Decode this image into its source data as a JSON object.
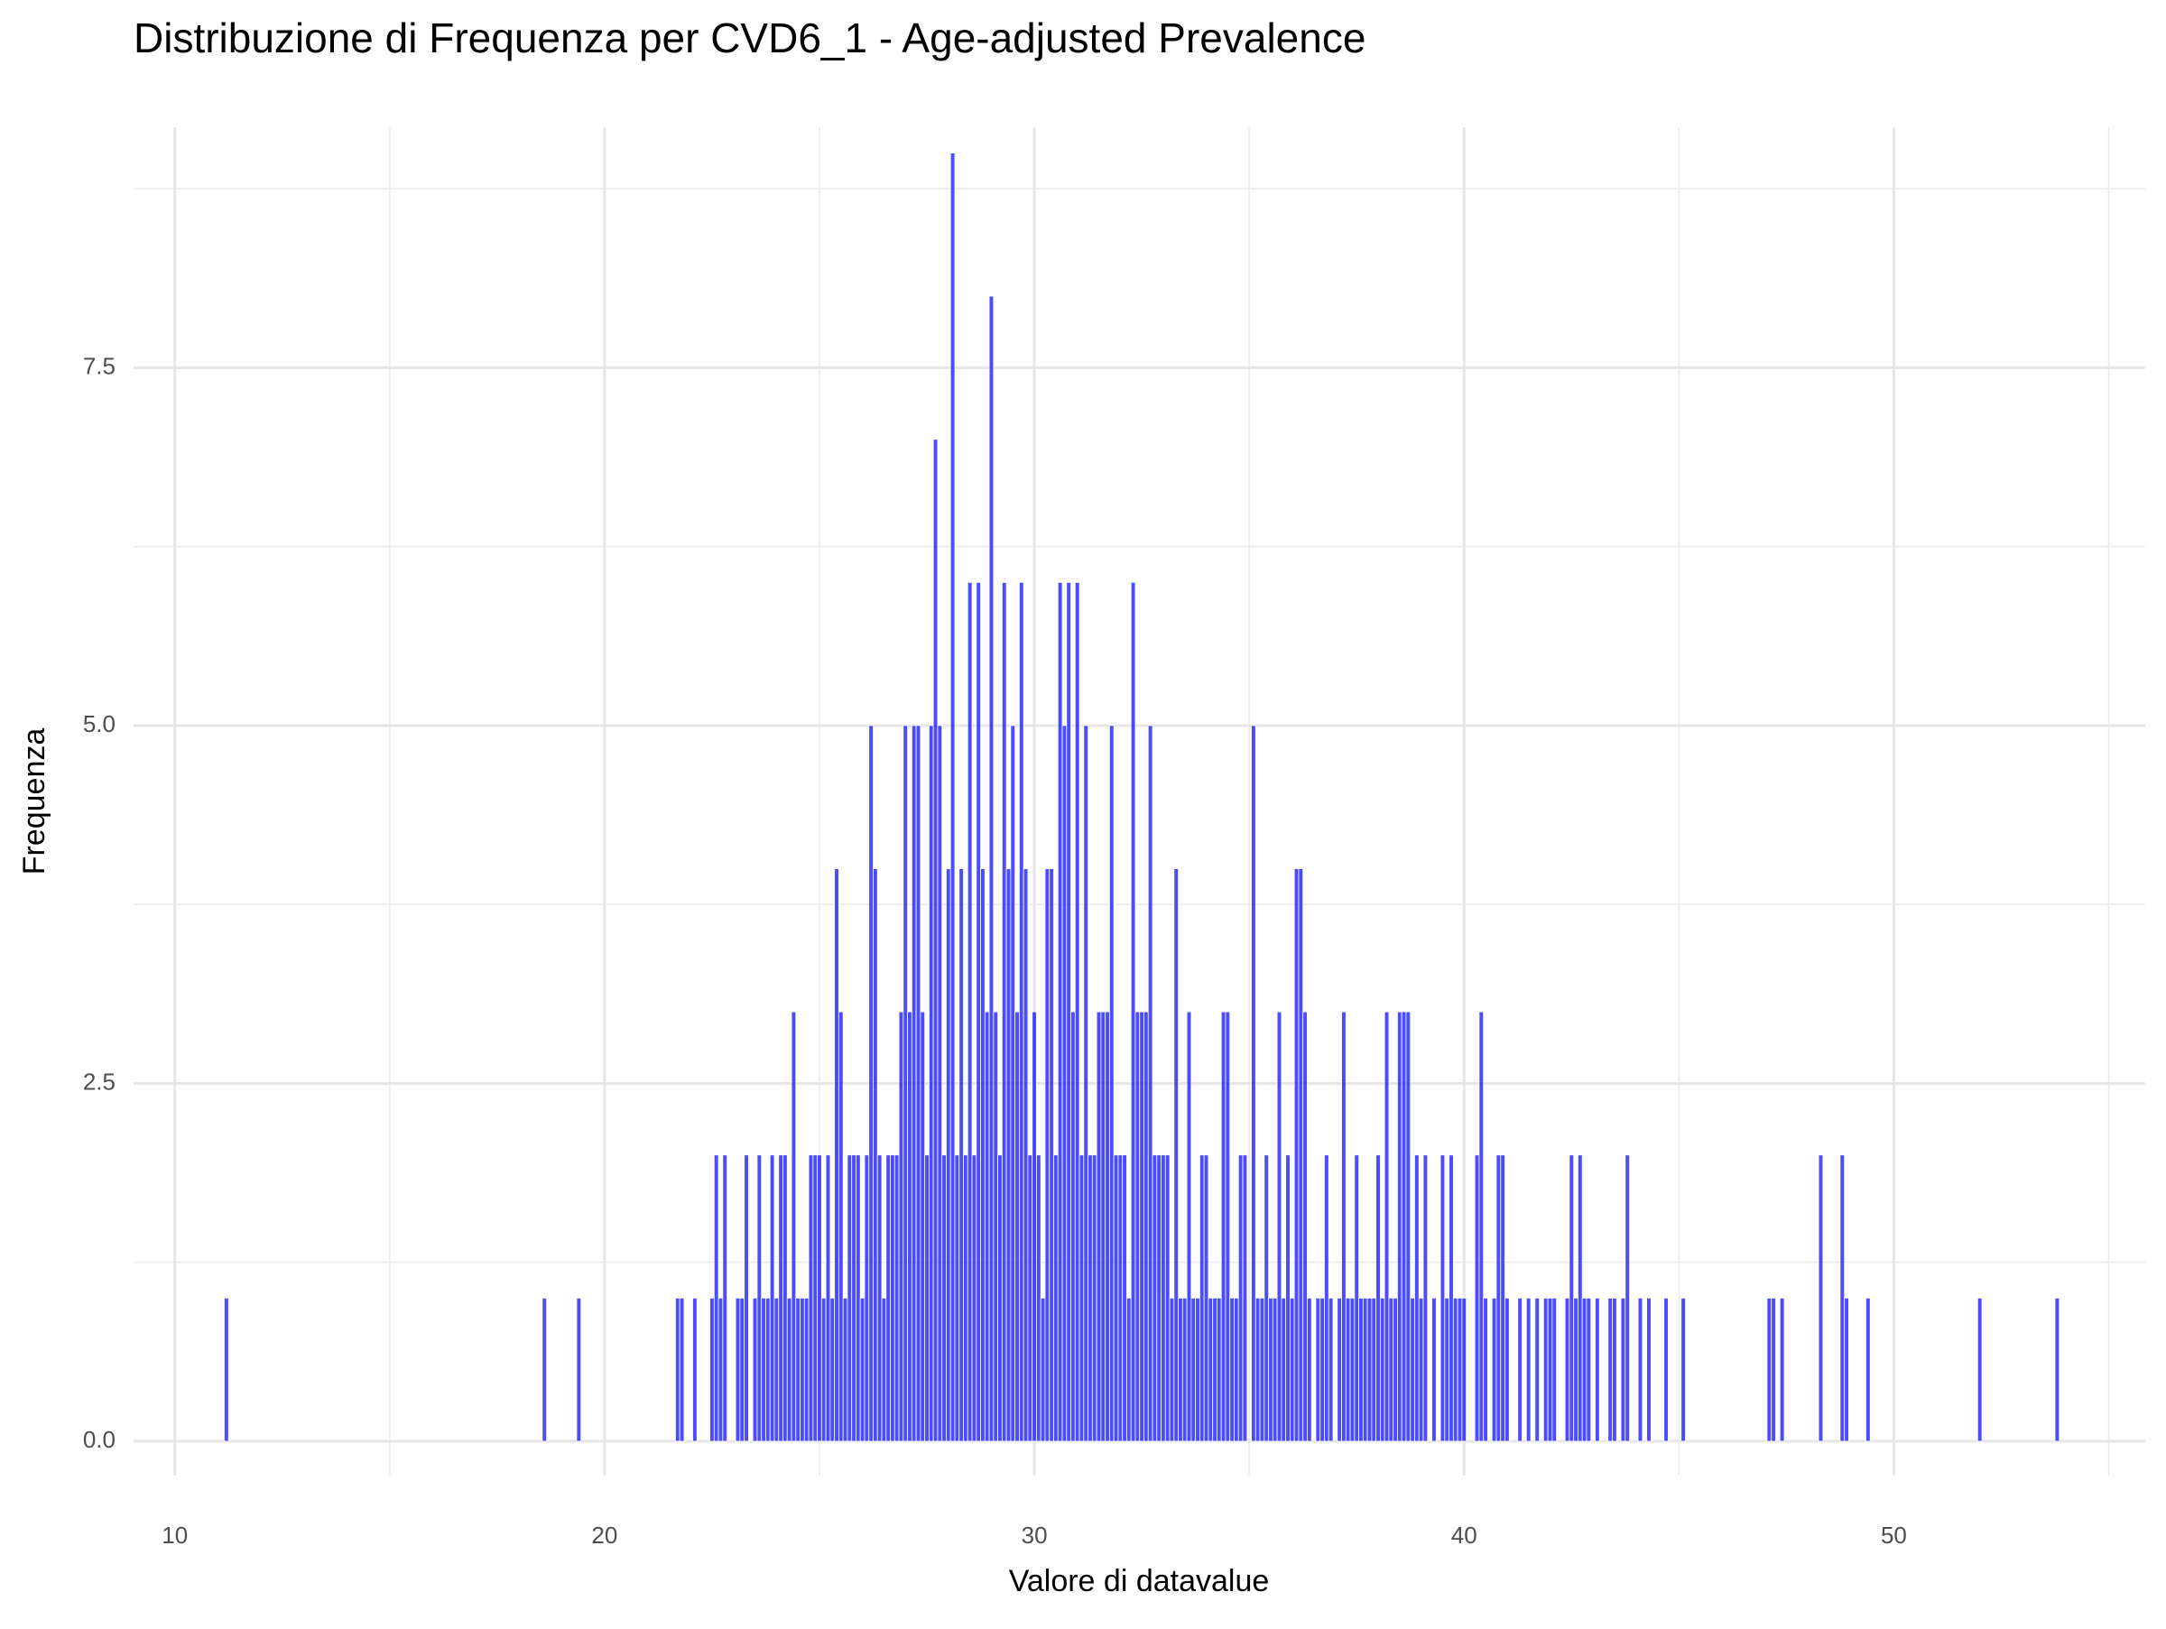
{
  "chart_data": {
    "type": "histogram",
    "title": "Distribuzione di Frequenza per CVD6_1 - Age-adjusted Prevalence",
    "xlabel": "Valore di datavalue",
    "ylabel": "Frequenza",
    "color": "#0000ff",
    "alpha": 0.7,
    "grid": true,
    "xlim": [
      9.04,
      55.85
    ],
    "ylim": [
      -0.24,
      9.18
    ],
    "xticks": [
      10,
      20,
      30,
      40,
      50
    ],
    "yticks": [
      {
        "value": 0,
        "label": "0.0"
      },
      2.5,
      {
        "value": 5,
        "label": "5.0"
      },
      7.5
    ],
    "bins": [
      11.15,
      11.25,
      18.55,
      18.65,
      19.35,
      19.45,
      21.65,
      21.75,
      21.85,
      21.95,
      22.05,
      22.15,
      22.25,
      22.35,
      22.45,
      22.55,
      22.65,
      22.75,
      22.85,
      22.95,
      23.05,
      23.15,
      23.25,
      23.35,
      23.45,
      23.55,
      23.65,
      23.75,
      23.85,
      23.95,
      24.05,
      24.15,
      24.25,
      24.35,
      24.45,
      24.55,
      24.65,
      24.75,
      24.85,
      24.95,
      25.05,
      25.15,
      25.25,
      25.35,
      25.45,
      25.55,
      25.65,
      25.75,
      25.85,
      25.95,
      26.05,
      26.15,
      26.25,
      26.35,
      26.45,
      26.55,
      26.65,
      26.75,
      26.85,
      26.95,
      27.05,
      27.15,
      27.25,
      27.35,
      27.45,
      27.55,
      27.65,
      27.75,
      27.85,
      27.95,
      28.05,
      28.15,
      28.25,
      28.35,
      28.45,
      28.55,
      28.65,
      28.75,
      28.85,
      28.95,
      29.05,
      29.15,
      29.25,
      29.35,
      29.45,
      29.55,
      29.65,
      29.75,
      29.85,
      29.95,
      30.05,
      30.15,
      30.25,
      30.35,
      30.45,
      30.55,
      30.65,
      30.75,
      30.85,
      30.95,
      31.05,
      31.15,
      31.25,
      31.35,
      31.45,
      31.55,
      31.65,
      31.75,
      31.85,
      31.95,
      32.05,
      32.15,
      32.25,
      32.35,
      32.45,
      32.55,
      32.65,
      32.75,
      32.85,
      32.95,
      33.05,
      33.15,
      33.25,
      33.35,
      33.45,
      33.55,
      33.65,
      33.75,
      33.85,
      33.95,
      34.05,
      34.15,
      34.25,
      34.35,
      34.45,
      34.55,
      34.65,
      34.75,
      34.85,
      34.95,
      35.05,
      35.15,
      35.25,
      35.35,
      35.45,
      35.55,
      35.65,
      35.75,
      35.85,
      35.95,
      36.05,
      36.15,
      36.25,
      36.35,
      36.45,
      36.55,
      36.65,
      36.75,
      36.85,
      36.95,
      37.05,
      37.15,
      37.25,
      37.35,
      37.45,
      37.55,
      37.65,
      37.75,
      37.85,
      37.95,
      38.05,
      38.15,
      38.25,
      38.35,
      38.45,
      38.55,
      38.65,
      38.75,
      38.85,
      38.95,
      39.05,
      39.15,
      39.25,
      39.35,
      39.45,
      39.55,
      39.65,
      39.75,
      39.85,
      39.95,
      40.05,
      40.15,
      40.25,
      40.35,
      40.45,
      40.55,
      40.65,
      40.75,
      40.85,
      40.95,
      41.05,
      41.15,
      41.25,
      41.35,
      41.45,
      41.55,
      41.65,
      41.75,
      41.85,
      41.95,
      42.05,
      42.15,
      42.25,
      42.35,
      42.45,
      42.55,
      42.65,
      42.75,
      42.85,
      42.95,
      43.05,
      43.15,
      43.25,
      43.35,
      43.45,
      43.55,
      43.65,
      43.75,
      43.85,
      43.95,
      44.05,
      44.15,
      44.25,
      44.35,
      44.45,
      44.55,
      44.65,
      44.75,
      44.85,
      44.95,
      45.05,
      45.15,
      45.25,
      45.35,
      45.45,
      45.55,
      45.65,
      45.75,
      45.85,
      45.95,
      46.05,
      46.15,
      46.25,
      46.35,
      46.45,
      46.55,
      46.65,
      46.75,
      46.85,
      46.95,
      47.05,
      47.15,
      47.25,
      47.35,
      47.45,
      47.55,
      47.65,
      47.75,
      47.85,
      47.95,
      48.05,
      48.15,
      48.25,
      48.35,
      48.45,
      48.55,
      48.65,
      48.75,
      48.85,
      48.95,
      49.05,
      49.15,
      49.25,
      49.35,
      49.45,
      51.95,
      52.05,
      53.75,
      53.85
    ],
    "counts": [
      1,
      0,
      1,
      0,
      1,
      0,
      1,
      1,
      0,
      0,
      1,
      0,
      0,
      0,
      1,
      2,
      1,
      2,
      0,
      0,
      1,
      1,
      2,
      0,
      1,
      2,
      1,
      1,
      2,
      1,
      2,
      2,
      1,
      3,
      1,
      1,
      1,
      2,
      2,
      2,
      1,
      2,
      1,
      4,
      3,
      1,
      2,
      2,
      2,
      1,
      2,
      5,
      4,
      2,
      1,
      2,
      2,
      2,
      3,
      5,
      3,
      5,
      5,
      3,
      2,
      5,
      7,
      5,
      2,
      4,
      9,
      2,
      4,
      2,
      6,
      2,
      6,
      4,
      3,
      8,
      3,
      2,
      6,
      4,
      5,
      3,
      6,
      4,
      2,
      3,
      2,
      1,
      4,
      4,
      2,
      6,
      5,
      6,
      3,
      6,
      2,
      5,
      2,
      2,
      3,
      3,
      3,
      5,
      2,
      2,
      2,
      1,
      6,
      3,
      3,
      3,
      5,
      2,
      2,
      2,
      2,
      1,
      4,
      1,
      1,
      3,
      1,
      1,
      2,
      2,
      1,
      1,
      1,
      3,
      3,
      1,
      1,
      2,
      2,
      0,
      5,
      1,
      1,
      2,
      1,
      1,
      3,
      1,
      2,
      1,
      4,
      4,
      3,
      1,
      0,
      1,
      1,
      2,
      1,
      0,
      1,
      3,
      1,
      1,
      2,
      1,
      1,
      1,
      1,
      2,
      1,
      3,
      1,
      1,
      3,
      3,
      3,
      1,
      2,
      1,
      2,
      0,
      1,
      0,
      2,
      1,
      2,
      1,
      1,
      1,
      0,
      0,
      2,
      3,
      1,
      0,
      1,
      2,
      2,
      1,
      0,
      0,
      1,
      0,
      1,
      0,
      1,
      0,
      1,
      1,
      1,
      0,
      0,
      1,
      2,
      1,
      2,
      1,
      1,
      0,
      1,
      0,
      0,
      1,
      1,
      0,
      1,
      2,
      0,
      0,
      1,
      0,
      1,
      0,
      0,
      0,
      1,
      0,
      0,
      0,
      1,
      0,
      0,
      0,
      0,
      0,
      0,
      0,
      0,
      0,
      0,
      0,
      0,
      0,
      0,
      0,
      0,
      0,
      0,
      0,
      1,
      1,
      0,
      1,
      0,
      0,
      0,
      0,
      0,
      0,
      0,
      0,
      2,
      0,
      0,
      0,
      0,
      2,
      1,
      0,
      0,
      0,
      0,
      1,
      0,
      1,
      0,
      1
    ]
  }
}
